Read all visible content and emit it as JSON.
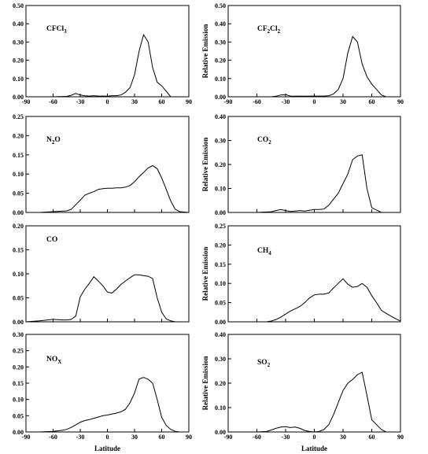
{
  "chart_data": [
    {
      "type": "line",
      "title": "CFCl3",
      "title_parts": [
        {
          "t": "CFCl"
        },
        {
          "t": "3",
          "sub": true
        }
      ],
      "ylabel": "",
      "xlabel": "",
      "xlim": [
        -90,
        90
      ],
      "ylim": [
        0,
        0.5
      ],
      "xticks": [
        "-90",
        "-60",
        "-30",
        "0",
        "30",
        "60",
        "90"
      ],
      "yticks": [
        "0.00",
        "0.10",
        "0.20",
        "0.30",
        "0.40",
        "0.50"
      ],
      "x": [
        -90,
        -60,
        -45,
        -40,
        -35,
        -30,
        -25,
        -20,
        -15,
        -10,
        -5,
        0,
        5,
        10,
        15,
        20,
        25,
        30,
        35,
        40,
        45,
        50,
        55,
        60,
        65,
        70,
        75,
        80,
        85,
        90
      ],
      "y": [
        0,
        0,
        0.002,
        0.008,
        0.018,
        0.01,
        0.005,
        0.004,
        0.006,
        0.004,
        0.004,
        0.003,
        0.006,
        0.006,
        0.01,
        0.025,
        0.05,
        0.12,
        0.25,
        0.34,
        0.3,
        0.16,
        0.08,
        0.06,
        0.03,
        0,
        0,
        0,
        0,
        0
      ]
    },
    {
      "type": "line",
      "title": "CF2Cl2",
      "title_parts": [
        {
          "t": "CF"
        },
        {
          "t": "2",
          "sub": true
        },
        {
          "t": "Cl"
        },
        {
          "t": "2",
          "sub": true
        }
      ],
      "ylabel": "Relative Emission",
      "xlabel": "",
      "xlim": [
        -90,
        90
      ],
      "ylim": [
        0,
        0.5
      ],
      "xticks": [
        "-90",
        "-60",
        "-30",
        "0",
        "30",
        "60",
        "90"
      ],
      "yticks": [
        "0.00",
        "0.10",
        "0.20",
        "0.30",
        "0.40",
        "0.50"
      ],
      "x": [
        -90,
        -60,
        -45,
        -40,
        -35,
        -30,
        -25,
        -20,
        -15,
        -10,
        -5,
        0,
        5,
        10,
        15,
        20,
        25,
        30,
        35,
        40,
        45,
        50,
        55,
        60,
        65,
        70,
        75,
        80,
        85,
        90
      ],
      "y": [
        0,
        0,
        0,
        0.003,
        0.01,
        0.012,
        0.004,
        0.003,
        0.004,
        0.003,
        0.004,
        0.004,
        0.004,
        0.004,
        0.006,
        0.015,
        0.04,
        0.1,
        0.24,
        0.33,
        0.3,
        0.18,
        0.11,
        0.07,
        0.04,
        0.01,
        0,
        0,
        0,
        0
      ]
    },
    {
      "type": "line",
      "title": "N2O",
      "title_parts": [
        {
          "t": "N"
        },
        {
          "t": "2",
          "sub": true
        },
        {
          "t": "O"
        }
      ],
      "ylabel": "",
      "xlabel": "",
      "xlim": [
        -90,
        90
      ],
      "ylim": [
        0,
        0.25
      ],
      "xticks": [],
      "yticks": [
        "0.00",
        "0.05",
        "0.10",
        "0.15",
        "0.20",
        "0.25"
      ],
      "x": [
        -90,
        -75,
        -60,
        -45,
        -40,
        -35,
        -30,
        -25,
        -20,
        -15,
        -10,
        -5,
        0,
        5,
        10,
        15,
        20,
        25,
        30,
        35,
        40,
        45,
        50,
        55,
        60,
        65,
        70,
        75,
        80,
        90
      ],
      "y": [
        0,
        0,
        0.002,
        0.004,
        0.008,
        0.02,
        0.032,
        0.045,
        0.05,
        0.054,
        0.06,
        0.062,
        0.063,
        0.063,
        0.064,
        0.064,
        0.066,
        0.07,
        0.08,
        0.093,
        0.104,
        0.116,
        0.122,
        0.114,
        0.09,
        0.06,
        0.03,
        0.008,
        0.002,
        0
      ]
    },
    {
      "type": "line",
      "title": "CO2",
      "title_parts": [
        {
          "t": "CO"
        },
        {
          "t": "2",
          "sub": true
        }
      ],
      "ylabel": "Relative Emission",
      "xlabel": "",
      "xlim": [
        -90,
        90
      ],
      "ylim": [
        0,
        0.4
      ],
      "xticks": [],
      "yticks": [
        "0.00",
        "0.10",
        "0.20",
        "0.30",
        "0.40"
      ],
      "x": [
        -90,
        -60,
        -45,
        -40,
        -35,
        -30,
        -25,
        -20,
        -15,
        -10,
        -5,
        0,
        5,
        10,
        15,
        20,
        25,
        30,
        35,
        40,
        45,
        50,
        55,
        60,
        65,
        70,
        75,
        80,
        85,
        90
      ],
      "y": [
        0,
        0,
        0.003,
        0.008,
        0.012,
        0.008,
        0.004,
        0.006,
        0.008,
        0.006,
        0.009,
        0.012,
        0.012,
        0.014,
        0.03,
        0.055,
        0.08,
        0.12,
        0.16,
        0.22,
        0.235,
        0.24,
        0.1,
        0.02,
        0.01,
        0,
        0,
        0,
        0,
        0
      ]
    },
    {
      "type": "line",
      "title": "CO",
      "title_parts": [
        {
          "t": "CO"
        }
      ],
      "ylabel": "",
      "xlabel": "",
      "xlim": [
        -90,
        90
      ],
      "ylim": [
        0,
        0.2
      ],
      "xticks": [],
      "yticks": [
        "0.00",
        "0.05",
        "0.10",
        "0.15",
        "0.20"
      ],
      "x": [
        -90,
        -75,
        -60,
        -50,
        -45,
        -40,
        -35,
        -30,
        -25,
        -20,
        -15,
        -10,
        -5,
        0,
        5,
        10,
        15,
        20,
        25,
        30,
        35,
        40,
        45,
        50,
        55,
        60,
        65,
        70,
        75,
        80,
        90
      ],
      "y": [
        0,
        0.002,
        0.005,
        0.004,
        0.004,
        0.005,
        0.012,
        0.052,
        0.068,
        0.08,
        0.094,
        0.085,
        0.075,
        0.062,
        0.06,
        0.068,
        0.078,
        0.085,
        0.092,
        0.098,
        0.098,
        0.096,
        0.095,
        0.09,
        0.05,
        0.02,
        0.006,
        0.002,
        0,
        0,
        0
      ]
    },
    {
      "type": "line",
      "title": "CH4",
      "title_parts": [
        {
          "t": "CH"
        },
        {
          "t": "4",
          "sub": true
        }
      ],
      "ylabel": "Relative Emission",
      "xlabel": "",
      "xlim": [
        -90,
        90
      ],
      "ylim": [
        0,
        0.25
      ],
      "xticks": [],
      "yticks": [
        "0.00",
        "0.05",
        "0.10",
        "0.15",
        "0.20",
        "0.25"
      ],
      "x": [
        -90,
        -60,
        -50,
        -45,
        -40,
        -35,
        -30,
        -25,
        -20,
        -15,
        -10,
        -5,
        0,
        5,
        10,
        15,
        20,
        25,
        30,
        35,
        40,
        45,
        50,
        55,
        60,
        65,
        70,
        75,
        80,
        85,
        90
      ],
      "y": [
        0,
        0,
        0,
        0.002,
        0.006,
        0.012,
        0.02,
        0.028,
        0.034,
        0.04,
        0.05,
        0.062,
        0.07,
        0.072,
        0.072,
        0.075,
        0.088,
        0.1,
        0.112,
        0.098,
        0.09,
        0.092,
        0.1,
        0.09,
        0.068,
        0.05,
        0.03,
        0.022,
        0.015,
        0.008,
        0.002
      ]
    },
    {
      "type": "line",
      "title": "NOX",
      "title_parts": [
        {
          "t": "NO"
        },
        {
          "t": "X",
          "sub": true
        }
      ],
      "ylabel": "",
      "xlabel": "Latitude",
      "xlim": [
        -90,
        90
      ],
      "ylim": [
        0,
        0.3
      ],
      "xticks": [
        "-90",
        "-60",
        "-30",
        "0",
        "30",
        "60",
        "90"
      ],
      "yticks": [
        "0.00",
        "0.05",
        "0.10",
        "0.15",
        "0.20",
        "0.25",
        "0.30"
      ],
      "x": [
        -90,
        -75,
        -60,
        -50,
        -45,
        -40,
        -35,
        -30,
        -25,
        -20,
        -15,
        -10,
        -5,
        0,
        5,
        10,
        15,
        20,
        25,
        30,
        35,
        40,
        45,
        50,
        55,
        60,
        65,
        70,
        75,
        80,
        90
      ],
      "y": [
        0,
        0,
        0.002,
        0.005,
        0.008,
        0.014,
        0.022,
        0.03,
        0.035,
        0.038,
        0.042,
        0.046,
        0.05,
        0.052,
        0.055,
        0.058,
        0.062,
        0.07,
        0.09,
        0.12,
        0.163,
        0.168,
        0.162,
        0.15,
        0.1,
        0.045,
        0.02,
        0.008,
        0.002,
        0,
        0
      ]
    },
    {
      "type": "line",
      "title": "SO2",
      "title_parts": [
        {
          "t": "SO"
        },
        {
          "t": "2",
          "sub": true
        }
      ],
      "ylabel": "Relative Emission",
      "xlabel": "Latitude",
      "xlim": [
        -90,
        90
      ],
      "ylim": [
        0,
        0.4
      ],
      "xticks": [
        "-90",
        "-60",
        "-30",
        "0",
        "30",
        "60",
        "90"
      ],
      "yticks": [
        "0.00",
        "0.10",
        "0.20",
        "0.30",
        "0.40"
      ],
      "x": [
        -90,
        -60,
        -50,
        -45,
        -40,
        -35,
        -30,
        -25,
        -20,
        -15,
        -10,
        -5,
        0,
        5,
        10,
        15,
        20,
        25,
        30,
        35,
        40,
        45,
        50,
        55,
        60,
        65,
        70,
        75,
        80,
        90
      ],
      "y": [
        0,
        0,
        0.002,
        0.008,
        0.015,
        0.02,
        0.022,
        0.018,
        0.02,
        0.015,
        0.006,
        0.002,
        0,
        0.002,
        0.01,
        0.03,
        0.07,
        0.12,
        0.17,
        0.2,
        0.215,
        0.235,
        0.245,
        0.15,
        0.05,
        0.03,
        0.01,
        0,
        0,
        0
      ]
    }
  ]
}
